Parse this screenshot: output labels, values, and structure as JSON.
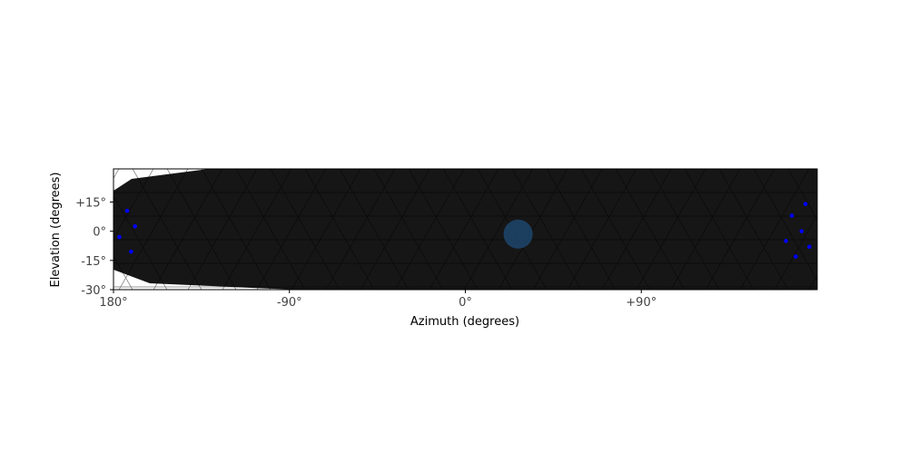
{
  "chart_data": {
    "type": "scatter",
    "xlabel": "Azimuth (degrees)",
    "ylabel": "Elevation (degrees)",
    "xlim": [
      -180,
      180
    ],
    "ylim": [
      -30,
      32
    ],
    "x_ticks": [
      {
        "value": -180,
        "label": "180°"
      },
      {
        "value": -90,
        "label": "-90°"
      },
      {
        "value": 0,
        "label": "0°"
      },
      {
        "value": 90,
        "label": "+90°"
      }
    ],
    "y_ticks": [
      {
        "value": 15,
        "label": "+15°"
      },
      {
        "value": 0,
        "label": "0°"
      },
      {
        "value": -15,
        "label": "-15°"
      },
      {
        "value": -30,
        "label": "-30°"
      }
    ],
    "background": "triangulated heat map, dark with light-blue hot spots at ±180°",
    "points": [
      {
        "x": -173,
        "y": 10.5
      },
      {
        "x": -169,
        "y": 2.5
      },
      {
        "x": -177,
        "y": -3
      },
      {
        "x": -171,
        "y": -10.5
      },
      {
        "x": 167,
        "y": 8
      },
      {
        "x": 174,
        "y": 14
      },
      {
        "x": 172,
        "y": 0
      },
      {
        "x": 164,
        "y": -5
      },
      {
        "x": 176,
        "y": -8
      },
      {
        "x": 169,
        "y": -13
      }
    ],
    "marker": {
      "x": 27,
      "y": -1.5
    },
    "colors": {
      "point": "#0000ff",
      "marker": "#1f4e79",
      "dark": "#161616",
      "hot": "#7ec8ff"
    }
  }
}
